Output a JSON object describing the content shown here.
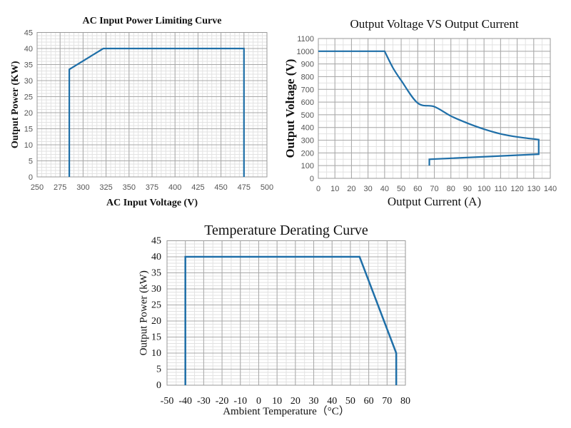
{
  "line_color": "#1f6fa8",
  "chart_data": [
    {
      "type": "line",
      "title": "AC Input Power Limiting Curve",
      "xlabel": "AC Input Voltage (V)",
      "ylabel": "Output Power (KW)",
      "xlim": [
        250,
        500
      ],
      "ylim": [
        0,
        45
      ],
      "xticks": [
        250,
        275,
        300,
        325,
        350,
        375,
        400,
        425,
        450,
        475,
        500
      ],
      "yticks": [
        0,
        5,
        10,
        15,
        20,
        25,
        30,
        35,
        40,
        45
      ],
      "grid": true,
      "series": [
        {
          "x": [
            285,
            285,
            322,
            475,
            475
          ],
          "y": [
            0,
            33.5,
            40,
            40,
            0
          ]
        }
      ]
    },
    {
      "type": "line",
      "title": "Output Voltage VS Output Current",
      "xlabel": "Output Current (A)",
      "ylabel": "Output Voltage (V)",
      "xlim": [
        0,
        140
      ],
      "ylim": [
        0,
        1100
      ],
      "xticks": [
        0,
        10,
        20,
        30,
        40,
        50,
        60,
        70,
        80,
        90,
        100,
        110,
        120,
        130,
        140
      ],
      "yticks": [
        0,
        100,
        200,
        300,
        400,
        500,
        600,
        700,
        800,
        900,
        1000,
        1100
      ],
      "grid": true,
      "series": [
        {
          "x": [
            0,
            40,
            45,
            50,
            60,
            70,
            80,
            90,
            100,
            110,
            120,
            133,
            133,
            67,
            67
          ],
          "y": [
            1000,
            1000,
            870,
            770,
            592,
            564,
            490,
            434,
            387,
            350,
            326,
            305,
            190,
            150,
            100
          ]
        }
      ]
    },
    {
      "type": "line",
      "title": "Temperature Derating Curve",
      "xlabel": "Ambient Temperature（°C）",
      "ylabel": "Output Power (kW)",
      "xlim": [
        -50,
        80
      ],
      "ylim": [
        0,
        45
      ],
      "xticks": [
        -50,
        -40,
        -30,
        -20,
        -10,
        0,
        10,
        20,
        30,
        40,
        50,
        60,
        70,
        80
      ],
      "yticks": [
        0,
        5,
        10,
        15,
        20,
        25,
        30,
        35,
        40,
        45
      ],
      "grid": true,
      "series": [
        {
          "x": [
            -40,
            -40,
            55,
            75,
            75
          ],
          "y": [
            0,
            40,
            40,
            10,
            0
          ]
        }
      ]
    }
  ]
}
